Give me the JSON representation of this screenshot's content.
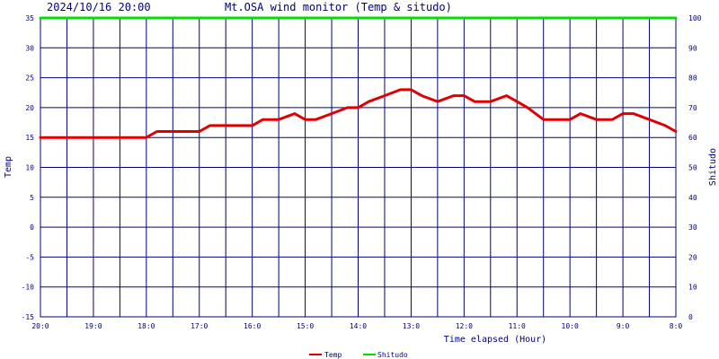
{
  "header": {
    "timestamp": "2024/10/16 20:00",
    "title": "Mt.OSA wind monitor (Temp & situdo)"
  },
  "colors": {
    "grid": "#000080",
    "temp": "#e00000",
    "humidity": "#00e000",
    "text": "#000080"
  },
  "chart_data": {
    "type": "line",
    "title": "Mt.OSA wind monitor (Temp & situdo)",
    "xlabel": "Time elapsed (Hour)",
    "ylabel_left": "Temp",
    "ylabel_right": "Shitudo",
    "ylim_left": [
      -15,
      35
    ],
    "ylim_right": [
      0,
      100
    ],
    "yticks_left": [
      -15,
      -10,
      -5,
      0,
      5,
      10,
      15,
      20,
      25,
      30,
      35
    ],
    "yticks_right": [
      0,
      10,
      20,
      30,
      40,
      50,
      60,
      70,
      80,
      90,
      100
    ],
    "x_ticklabels": [
      "20:0",
      "19:0",
      "18:0",
      "17:0",
      "16:0",
      "15:0",
      "14:0",
      "13:0",
      "12:0",
      "11:0",
      "10:0",
      "9:0",
      "8:0"
    ],
    "xlim": [
      0,
      12
    ],
    "grid": true,
    "legend": "bottom",
    "series": [
      {
        "name": "Temp",
        "axis": "left",
        "color": "#e00000",
        "x": [
          0,
          0.5,
          1,
          1.5,
          2,
          2.2,
          2.5,
          3,
          3.2,
          3.5,
          4,
          4.2,
          4.5,
          4.8,
          5,
          5.2,
          5.5,
          5.8,
          6,
          6.2,
          6.5,
          6.8,
          7,
          7.2,
          7.5,
          7.8,
          8,
          8.2,
          8.5,
          8.8,
          9,
          9.2,
          9.5,
          9.8,
          10,
          10.2,
          10.5,
          10.8,
          11,
          11.2,
          11.5,
          11.8,
          12
        ],
        "values": [
          15,
          15,
          15,
          15,
          15,
          16,
          16,
          16,
          17,
          17,
          17,
          18,
          18,
          19,
          18,
          18,
          19,
          20,
          20,
          21,
          22,
          23,
          23,
          22,
          21,
          22,
          22,
          21,
          21,
          22,
          21,
          20,
          18,
          18,
          18,
          19,
          18,
          18,
          19,
          19,
          18,
          17,
          16
        ]
      },
      {
        "name": "Shitudo",
        "axis": "right",
        "color": "#00e000",
        "x": [
          0,
          12
        ],
        "values": [
          100,
          100
        ]
      }
    ]
  }
}
